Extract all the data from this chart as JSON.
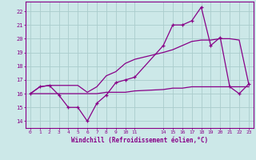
{
  "xlabel": "Windchill (Refroidissement éolien,°C)",
  "x_ticks": [
    0,
    1,
    2,
    3,
    4,
    5,
    6,
    7,
    8,
    9,
    10,
    11,
    14,
    15,
    16,
    17,
    18,
    19,
    20,
    21,
    22,
    23
  ],
  "xlim": [
    -0.5,
    23.5
  ],
  "ylim": [
    13.5,
    22.7
  ],
  "y_ticks": [
    14,
    15,
    16,
    17,
    18,
    19,
    20,
    21,
    22
  ],
  "bg_color": "#cce8e8",
  "grid_color": "#aacccc",
  "line_color": "#880088",
  "line1_x": [
    0,
    1,
    2,
    3,
    4,
    5,
    6,
    7,
    8,
    9,
    10,
    11,
    14,
    15,
    16,
    17,
    18,
    19,
    20,
    21,
    22,
    23
  ],
  "line1_y": [
    16.0,
    16.5,
    16.6,
    15.9,
    15.0,
    15.0,
    14.0,
    15.3,
    15.9,
    16.8,
    17.0,
    17.2,
    19.5,
    21.0,
    21.0,
    21.3,
    22.3,
    19.5,
    20.1,
    16.5,
    16.0,
    16.7
  ],
  "line2_x": [
    0,
    1,
    2,
    3,
    4,
    5,
    6,
    7,
    8,
    9,
    10,
    11,
    14,
    15,
    16,
    17,
    18,
    19,
    20,
    21,
    22,
    23
  ],
  "line2_y": [
    16.0,
    16.5,
    16.6,
    16.6,
    16.6,
    16.6,
    16.1,
    16.5,
    17.3,
    17.6,
    18.2,
    18.5,
    19.0,
    19.2,
    19.5,
    19.8,
    19.9,
    19.9,
    20.0,
    20.0,
    19.9,
    16.7
  ],
  "line3_x": [
    0,
    1,
    2,
    3,
    4,
    5,
    6,
    7,
    8,
    9,
    10,
    11,
    14,
    15,
    16,
    17,
    18,
    19,
    20,
    21,
    22,
    23
  ],
  "line3_y": [
    16.0,
    16.0,
    16.0,
    16.0,
    16.0,
    16.0,
    16.0,
    16.0,
    16.1,
    16.1,
    16.1,
    16.2,
    16.3,
    16.4,
    16.4,
    16.5,
    16.5,
    16.5,
    16.5,
    16.5,
    16.5,
    16.5
  ]
}
